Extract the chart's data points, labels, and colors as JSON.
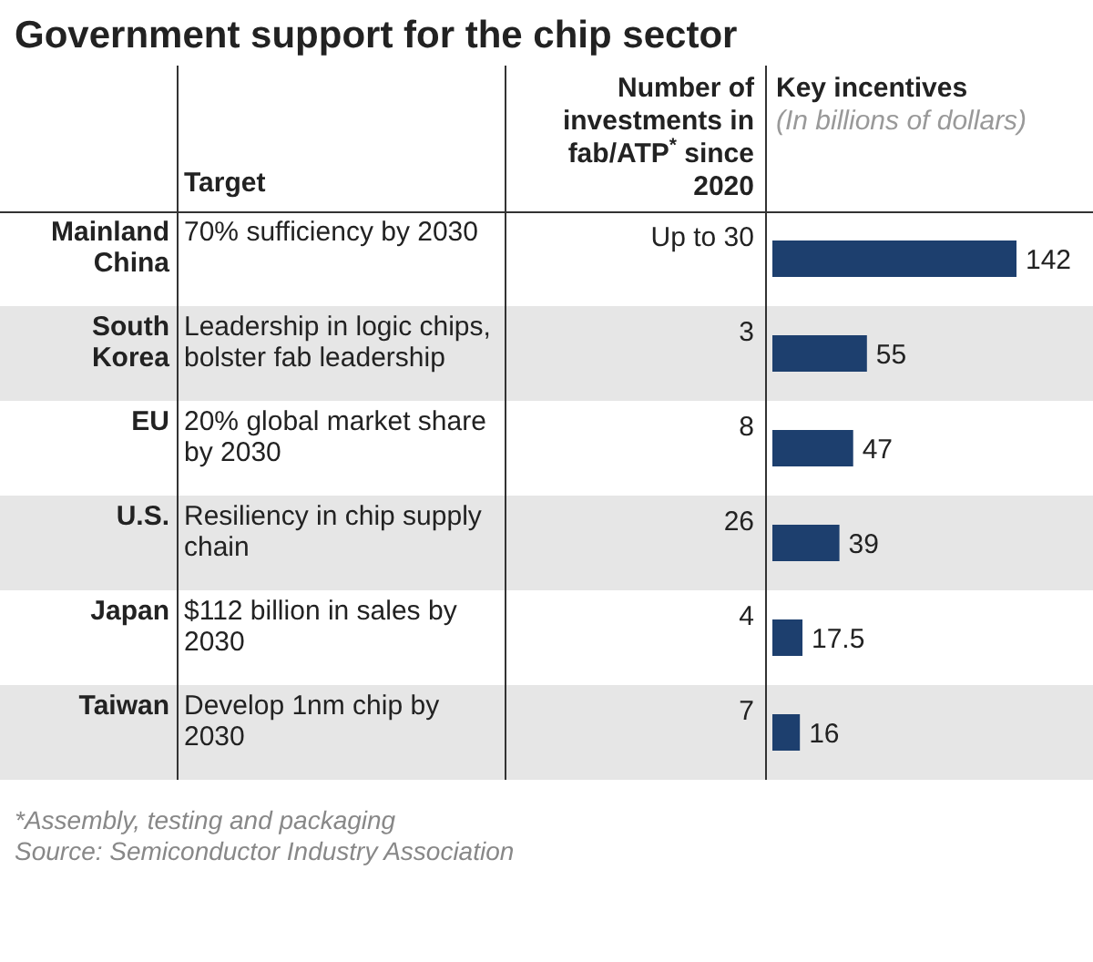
{
  "chart_data": {
    "type": "bar",
    "orientation": "horizontal",
    "title": "Government support for the chip sector",
    "categories": [
      "Mainland China",
      "South Korea",
      "EU",
      "U.S.",
      "Japan",
      "Taiwan"
    ],
    "values": [
      142,
      55,
      47,
      39,
      17.5,
      16
    ],
    "color": "#1d3f6e",
    "data_labels": true,
    "annotations": [
      "Target",
      "Number of investments in fab/ATP$^{*}$ since 2020",
      "Key incentives",
      "(In billions of dollars)",
      "70% sufficiency by 2030",
      "Leadership in logic chips, bolster fab leadership",
      "20% global market share by 2030",
      "Resiliency in chip supply chain",
      "$112 billion in sales by 2030",
      "Develop 1nm chip by 2030",
      "Up to 30",
      "3",
      "8",
      "26",
      "4",
      "7",
      "*Assembly, testing and packaging",
      "Source: Semiconductor Industry Association"
    ]
  }
}
